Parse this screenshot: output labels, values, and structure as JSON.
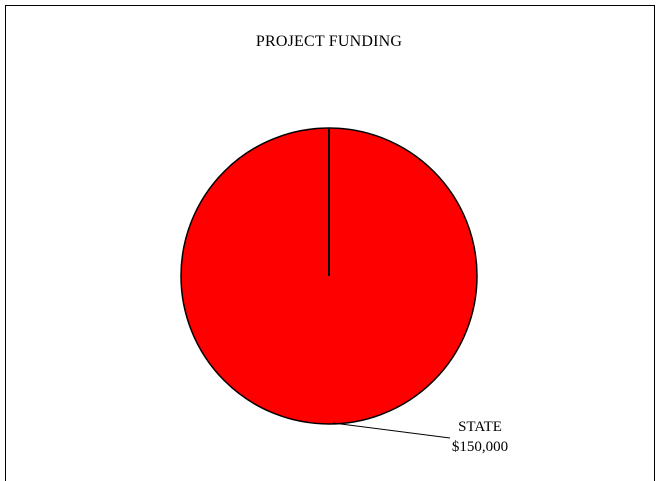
{
  "chart_data": {
    "type": "pie",
    "title": "PROJECT FUNDING",
    "slices": [
      {
        "label": "STATE",
        "value": 150000,
        "display_value": "$150,000",
        "color": "#ff0000"
      }
    ],
    "start_angle_deg": 0,
    "edge_color": "#000000"
  }
}
